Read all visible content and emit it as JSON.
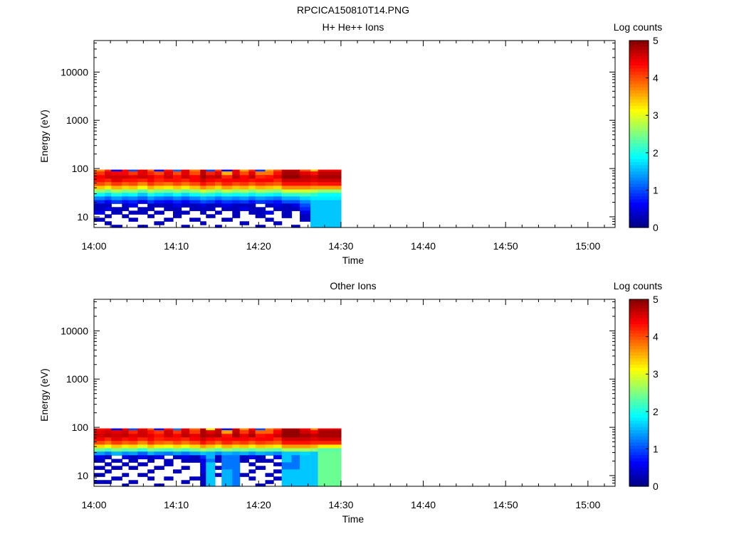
{
  "figure_title": "RPCICA150810T14.PNG",
  "colorbar": {
    "label": "Log counts",
    "ticks": [
      "0",
      "1",
      "2",
      "3",
      "4",
      "5"
    ],
    "range": [
      0,
      5
    ],
    "colormap": [
      "#00007f",
      "#0000ff",
      "#007fff",
      "#00ffff",
      "#7fff7f",
      "#ffff00",
      "#ff7f00",
      "#ff0000",
      "#7f0000"
    ]
  },
  "chart_data": [
    {
      "type": "heatmap",
      "title": "H+ He++ Ions",
      "xlabel": "Time",
      "ylabel": "Energy (eV)",
      "x_ticks": [
        "14:00",
        "14:10",
        "14:20",
        "14:30",
        "14:40",
        "14:50",
        "15:00"
      ],
      "x_range_minutes": [
        0,
        63.3
      ],
      "y_scale": "log",
      "y_ticks": [
        "10",
        "100",
        "1000",
        "10000"
      ],
      "y_range": [
        6,
        45000
      ],
      "z_label": "Log counts",
      "z_range": [
        0,
        5
      ],
      "data_extent": {
        "time": [
          "14:00",
          "14:30"
        ],
        "energy_eV": [
          6,
          95
        ]
      },
      "rows_energy_eV": [
        95,
        80,
        67,
        57,
        48,
        40,
        34,
        29,
        24,
        20.5,
        17.3,
        14.6,
        12.3,
        10.4,
        8.8,
        7.4,
        6.3
      ],
      "cols_start_min": [
        0,
        1.3,
        2.1,
        3.4,
        4.2,
        5.3,
        6.5,
        7.3,
        8.5,
        9.6,
        10.6,
        11.6,
        12.9,
        13.6,
        14.7,
        15.5,
        16.8,
        17.7,
        18.8,
        19.6,
        20.8,
        21.8,
        22.8,
        24.0,
        25.0,
        26.3,
        27.2
      ],
      "cols_end_min": [
        1.3,
        2.1,
        3.4,
        4.2,
        5.3,
        6.5,
        7.3,
        8.5,
        9.6,
        10.6,
        11.6,
        12.9,
        13.6,
        14.7,
        15.5,
        16.8,
        17.7,
        18.8,
        19.6,
        20.8,
        21.8,
        22.8,
        24.0,
        25.0,
        26.3,
        27.2,
        30.0
      ],
      "z": [
        [
          3.7,
          4.2,
          0.5,
          4.4,
          1.0,
          4.5,
          3.9,
          0.7,
          4.3,
          1.1,
          4.5,
          3.8,
          4.7,
          1.0,
          4.1,
          0.6,
          4.5,
          3.6,
          4.2,
          0.9,
          3.6,
          4.0,
          4.7,
          4.7,
          4.0,
          3.4,
          4.4
        ],
        [
          4.1,
          4.5,
          4.4,
          4.4,
          4.1,
          4.5,
          4.2,
          4.0,
          4.5,
          4.0,
          4.5,
          4.0,
          4.7,
          4.2,
          4.5,
          3.5,
          4.5,
          4.0,
          4.5,
          3.8,
          3.8,
          4.3,
          4.8,
          4.8,
          4.5,
          4.3,
          4.7
        ],
        [
          4.4,
          4.6,
          4.6,
          4.6,
          4.5,
          4.6,
          4.5,
          4.3,
          4.6,
          4.3,
          4.6,
          4.4,
          4.8,
          4.6,
          4.7,
          4.2,
          4.7,
          4.4,
          4.7,
          4.2,
          4.3,
          4.5,
          4.9,
          4.9,
          4.7,
          4.6,
          4.8
        ],
        [
          4.3,
          4.2,
          4.5,
          4.3,
          4.3,
          4.2,
          4.4,
          4.2,
          4.3,
          4.3,
          4.2,
          4.4,
          4.6,
          4.4,
          4.3,
          4.4,
          4.4,
          4.4,
          4.3,
          4.4,
          4.4,
          4.2,
          4.6,
          4.6,
          4.6,
          4.5,
          4.6
        ],
        [
          4.0,
          3.8,
          4.1,
          3.9,
          4.0,
          3.7,
          4.1,
          3.9,
          3.8,
          4.0,
          3.8,
          4.0,
          4.3,
          4.1,
          3.9,
          4.2,
          4.0,
          4.1,
          3.9,
          4.1,
          4.0,
          3.9,
          4.3,
          4.3,
          4.3,
          4.2,
          4.3
        ],
        [
          3.4,
          3.2,
          3.5,
          3.3,
          3.4,
          3.1,
          3.5,
          3.3,
          3.2,
          3.4,
          3.2,
          3.4,
          3.7,
          3.5,
          3.3,
          3.6,
          3.4,
          3.5,
          3.3,
          3.5,
          3.4,
          3.3,
          3.7,
          3.7,
          3.7,
          3.6,
          3.6
        ],
        [
          2.6,
          2.4,
          2.7,
          2.5,
          2.6,
          2.3,
          2.7,
          2.5,
          2.4,
          2.6,
          2.4,
          2.6,
          2.9,
          2.7,
          2.5,
          2.8,
          2.6,
          2.7,
          2.5,
          2.7,
          2.6,
          2.5,
          2.9,
          2.9,
          2.9,
          2.8,
          2.6
        ],
        [
          1.9,
          1.7,
          2.0,
          1.8,
          1.9,
          1.6,
          2.0,
          1.8,
          1.7,
          1.9,
          1.7,
          1.9,
          2.1,
          2.0,
          1.8,
          2.0,
          1.9,
          2.0,
          1.8,
          2.0,
          1.9,
          1.8,
          2.1,
          2.1,
          2.2,
          2.1,
          1.9
        ],
        [
          1.3,
          1.1,
          1.4,
          1.2,
          1.3,
          1.1,
          1.4,
          1.2,
          1.1,
          1.3,
          1.1,
          1.3,
          1.5,
          1.4,
          1.2,
          1.4,
          1.3,
          1.4,
          1.2,
          1.4,
          1.3,
          1.2,
          1.5,
          1.5,
          1.7,
          1.8,
          1.8
        ],
        [
          0.8,
          0.6,
          0.9,
          0.7,
          0.8,
          0.5,
          0.9,
          0.7,
          0.6,
          0.8,
          0.6,
          0.8,
          1.0,
          0.9,
          0.7,
          0.9,
          0.8,
          0.9,
          0.7,
          0.9,
          0.8,
          0.7,
          1.0,
          1.0,
          1.3,
          1.6,
          1.6
        ],
        [
          0.3,
          0.3,
          null,
          0.3,
          0.5,
          null,
          0.3,
          0.3,
          0.3,
          0.5,
          0.3,
          0.3,
          0.5,
          0.3,
          0.3,
          0.5,
          0.3,
          0.3,
          0.3,
          null,
          0.3,
          0.5,
          0.3,
          0.5,
          1.0,
          1.6,
          1.6
        ],
        [
          0.3,
          0.5,
          0.3,
          0.3,
          null,
          0.3,
          0.3,
          null,
          0.3,
          0.3,
          null,
          0.3,
          0.3,
          0.3,
          null,
          0.3,
          0.3,
          0.5,
          0.3,
          0.3,
          null,
          0.3,
          0.3,
          0.3,
          0.8,
          1.6,
          1.6
        ],
        [
          0.5,
          null,
          0.3,
          null,
          0.3,
          0.3,
          null,
          0.3,
          null,
          0.3,
          0.3,
          null,
          0.3,
          null,
          0.3,
          null,
          0.3,
          null,
          0.3,
          0.3,
          0.5,
          null,
          0.3,
          null,
          0.5,
          1.6,
          1.6
        ],
        [
          null,
          0.3,
          null,
          0.3,
          null,
          null,
          0.3,
          null,
          null,
          0.3,
          null,
          null,
          null,
          0.3,
          null,
          null,
          0.3,
          null,
          null,
          0.3,
          null,
          null,
          0.3,
          null,
          0.3,
          1.6,
          1.6
        ],
        [
          0.3,
          null,
          null,
          null,
          0.3,
          null,
          null,
          null,
          0.3,
          null,
          null,
          0.3,
          null,
          null,
          null,
          0.3,
          null,
          null,
          null,
          null,
          0.3,
          null,
          null,
          null,
          0.3,
          1.6,
          1.6
        ],
        [
          null,
          0.3,
          null,
          null,
          null,
          null,
          null,
          0.3,
          null,
          null,
          null,
          null,
          0.3,
          null,
          null,
          null,
          null,
          0.3,
          null,
          null,
          null,
          0.3,
          null,
          null,
          null,
          1.6,
          1.6
        ],
        [
          null,
          null,
          0.3,
          null,
          null,
          0.3,
          null,
          null,
          null,
          null,
          0.3,
          null,
          null,
          null,
          0.3,
          null,
          null,
          null,
          null,
          0.3,
          null,
          null,
          null,
          0.3,
          null,
          1.6,
          1.6
        ]
      ]
    },
    {
      "type": "heatmap",
      "title": "Other Ions",
      "xlabel": "Time",
      "ylabel": "Energy (eV)",
      "x_ticks": [
        "14:00",
        "14:10",
        "14:20",
        "14:30",
        "14:40",
        "14:50",
        "15:00"
      ],
      "x_range_minutes": [
        0,
        63.3
      ],
      "y_scale": "log",
      "y_ticks": [
        "10",
        "100",
        "1000",
        "10000"
      ],
      "y_range": [
        6,
        45000
      ],
      "z_label": "Log counts",
      "z_range": [
        0,
        5
      ],
      "data_extent": {
        "time": [
          "14:00",
          "14:30"
        ],
        "energy_eV": [
          6,
          95
        ]
      },
      "rows_energy_eV": [
        95,
        80,
        67,
        57,
        48,
        40,
        34,
        29,
        24,
        20.5,
        17.3,
        14.6,
        12.3,
        10.4,
        8.8,
        7.4,
        6.3
      ],
      "cols_start_min": [
        0,
        1.3,
        2.1,
        3.4,
        4.2,
        5.3,
        6.5,
        7.3,
        8.5,
        9.6,
        10.6,
        11.6,
        12.9,
        13.6,
        14.7,
        15.5,
        16.8,
        17.7,
        18.8,
        19.6,
        20.8,
        21.8,
        22.8,
        24.0,
        25.0,
        26.3,
        27.2
      ],
      "cols_end_min": [
        1.3,
        2.1,
        3.4,
        4.2,
        5.3,
        6.5,
        7.3,
        8.5,
        9.6,
        10.6,
        11.6,
        12.9,
        13.6,
        14.7,
        15.5,
        16.8,
        17.7,
        18.8,
        19.6,
        20.8,
        21.8,
        22.8,
        24.0,
        25.0,
        26.3,
        27.2,
        30.0
      ],
      "z": [
        [
          4.3,
          4.4,
          0.5,
          4.5,
          1.0,
          4.5,
          4.0,
          0.7,
          4.3,
          1.2,
          4.5,
          3.9,
          4.7,
          3.2,
          4.6,
          0.7,
          4.6,
          3.7,
          4.4,
          1.0,
          3.8,
          4.1,
          4.8,
          4.8,
          4.4,
          3.7,
          4.5
        ],
        [
          4.5,
          4.6,
          4.5,
          4.6,
          4.2,
          4.6,
          4.3,
          4.1,
          4.6,
          4.1,
          4.6,
          4.1,
          4.8,
          4.5,
          4.7,
          3.6,
          4.7,
          4.1,
          4.6,
          3.9,
          3.9,
          4.4,
          4.9,
          4.9,
          4.6,
          4.4,
          4.8
        ],
        [
          4.6,
          4.7,
          4.6,
          4.7,
          4.5,
          4.6,
          4.5,
          4.3,
          4.6,
          4.4,
          4.7,
          4.5,
          4.8,
          4.7,
          4.8,
          4.3,
          4.8,
          4.5,
          4.8,
          4.3,
          4.4,
          4.6,
          4.9,
          4.9,
          4.8,
          4.7,
          4.8
        ],
        [
          4.4,
          4.2,
          4.5,
          4.3,
          4.4,
          4.2,
          4.4,
          4.2,
          4.3,
          4.3,
          4.2,
          4.4,
          4.6,
          4.4,
          4.3,
          4.4,
          4.4,
          4.4,
          4.3,
          4.4,
          4.4,
          4.2,
          4.6,
          4.6,
          4.6,
          4.5,
          4.6
        ],
        [
          4.0,
          3.8,
          4.1,
          3.9,
          4.0,
          3.7,
          4.1,
          3.9,
          3.8,
          4.0,
          3.8,
          4.0,
          4.3,
          4.1,
          3.9,
          4.2,
          4.0,
          4.1,
          3.9,
          4.1,
          4.0,
          3.9,
          4.3,
          4.3,
          4.3,
          4.2,
          4.2
        ],
        [
          3.3,
          3.1,
          3.4,
          3.2,
          3.3,
          3.0,
          3.4,
          3.2,
          3.1,
          3.3,
          3.1,
          3.3,
          3.6,
          3.4,
          3.2,
          3.5,
          3.3,
          3.4,
          3.2,
          3.4,
          3.3,
          3.2,
          3.6,
          3.6,
          3.6,
          3.5,
          3.2
        ],
        [
          2.4,
          2.2,
          2.5,
          2.3,
          2.4,
          2.1,
          2.5,
          2.3,
          2.2,
          2.4,
          2.2,
          2.4,
          2.7,
          2.5,
          2.3,
          2.6,
          2.4,
          2.5,
          2.3,
          2.5,
          2.4,
          2.3,
          2.7,
          2.7,
          2.7,
          2.6,
          2.3
        ],
        [
          1.4,
          1.2,
          1.5,
          1.3,
          1.4,
          1.1,
          1.5,
          1.3,
          1.2,
          1.4,
          1.2,
          1.4,
          1.6,
          1.5,
          1.3,
          1.5,
          1.4,
          1.5,
          1.3,
          1.5,
          1.4,
          1.3,
          1.6,
          1.6,
          1.7,
          1.6,
          2.4
        ],
        [
          0.5,
          0.3,
          null,
          0.5,
          0.3,
          0.5,
          0.3,
          0.5,
          null,
          0.3,
          0.5,
          0.3,
          0.8,
          1.5,
          0.3,
          1.2,
          1.2,
          0.3,
          0.5,
          0.3,
          null,
          0.5,
          1.6,
          1.2,
          1.6,
          1.6,
          2.4
        ],
        [
          0.3,
          null,
          0.3,
          null,
          0.3,
          null,
          0.3,
          null,
          0.3,
          null,
          0.3,
          0.3,
          0.5,
          1.2,
          0.3,
          1.2,
          1.2,
          0.3,
          null,
          0.3,
          0.3,
          null,
          1.6,
          1.2,
          1.6,
          1.6,
          2.4
        ],
        [
          null,
          0.3,
          null,
          0.3,
          null,
          0.3,
          null,
          null,
          0.3,
          null,
          null,
          null,
          0.5,
          1.6,
          null,
          1.2,
          1.2,
          null,
          0.3,
          null,
          null,
          0.3,
          1.2,
          1.2,
          1.6,
          1.6,
          2.4
        ],
        [
          0.3,
          null,
          0.3,
          null,
          0.3,
          null,
          null,
          0.3,
          null,
          null,
          0.3,
          null,
          0.5,
          1.6,
          0.3,
          1.2,
          1.2,
          null,
          null,
          0.3,
          null,
          null,
          1.2,
          1.2,
          1.6,
          1.6,
          2.4
        ],
        [
          null,
          0.3,
          null,
          null,
          null,
          null,
          0.3,
          null,
          null,
          0.3,
          null,
          null,
          0.5,
          1.6,
          null,
          1.5,
          1.2,
          null,
          0.3,
          null,
          null,
          0.3,
          1.6,
          1.6,
          1.6,
          1.6,
          2.4
        ],
        [
          0.3,
          null,
          null,
          0.3,
          null,
          0.3,
          null,
          null,
          null,
          null,
          null,
          null,
          0.3,
          1.6,
          0.3,
          1.5,
          1.2,
          0.3,
          null,
          null,
          0.3,
          null,
          1.6,
          1.6,
          1.6,
          1.6,
          2.4
        ],
        [
          null,
          null,
          0.3,
          null,
          null,
          null,
          0.3,
          null,
          0.3,
          null,
          null,
          0.3,
          0.3,
          1.6,
          null,
          1.5,
          1.2,
          null,
          0.3,
          null,
          null,
          0.3,
          1.6,
          1.6,
          1.6,
          1.6,
          2.4
        ],
        [
          0.3,
          0.3,
          null,
          null,
          0.3,
          null,
          null,
          null,
          null,
          null,
          0.3,
          null,
          0.3,
          1.6,
          null,
          1.5,
          1.2,
          null,
          null,
          null,
          0.3,
          null,
          1.6,
          1.6,
          1.6,
          1.6,
          2.4
        ],
        [
          null,
          null,
          null,
          0.3,
          null,
          null,
          null,
          0.3,
          null,
          null,
          null,
          null,
          0.3,
          1.6,
          null,
          1.5,
          1.2,
          null,
          null,
          0.3,
          null,
          null,
          1.6,
          1.6,
          1.6,
          1.6,
          2.4
        ]
      ]
    }
  ]
}
